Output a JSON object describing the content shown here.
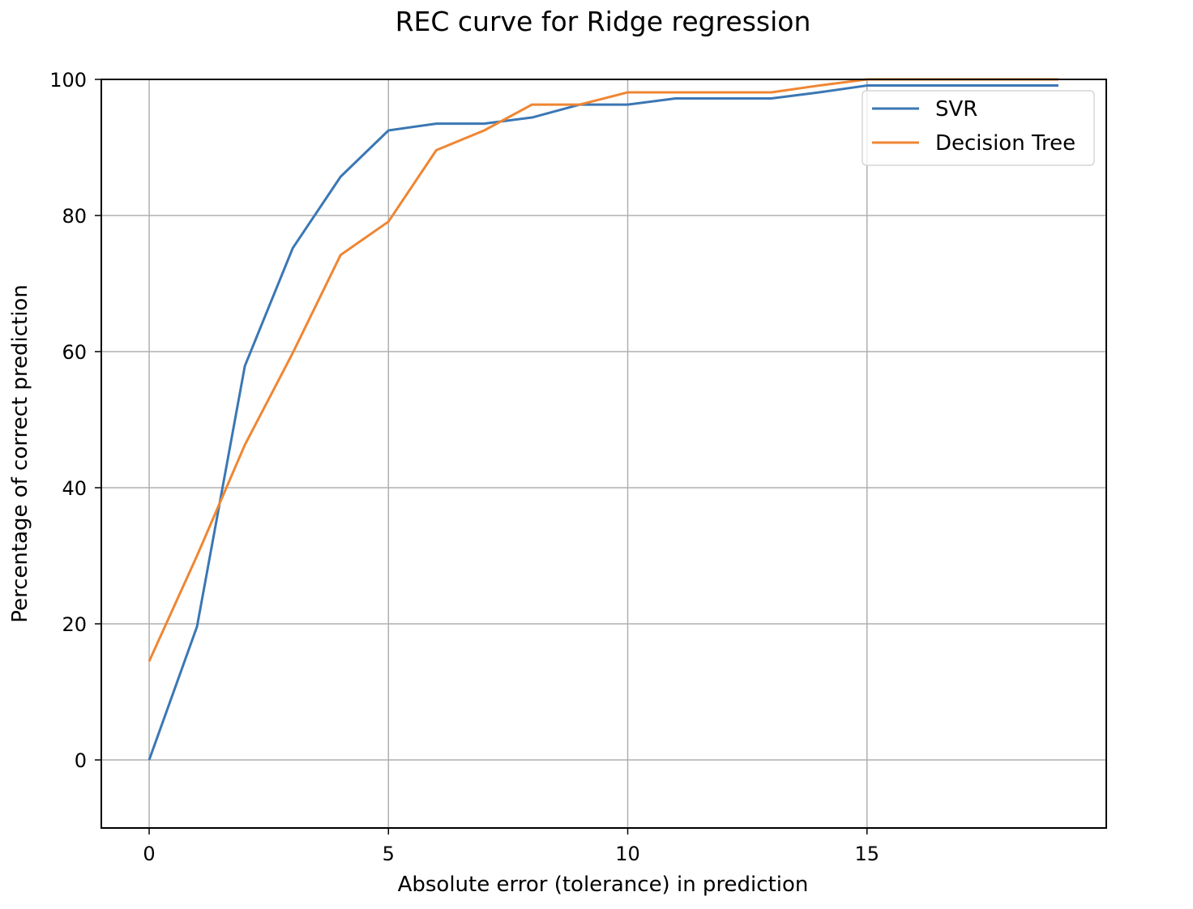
{
  "chart_data": {
    "type": "line",
    "title": "REC curve for Ridge regression",
    "xlabel": "Absolute error (tolerance) in prediction",
    "ylabel": "Percentage of correct prediction",
    "xlim": [
      -1,
      20
    ],
    "ylim": [
      -10,
      100
    ],
    "xticks": [
      0,
      5,
      10,
      15
    ],
    "yticks": [
      0,
      20,
      40,
      60,
      80,
      100
    ],
    "grid": true,
    "legend_position": "top-right",
    "x": [
      0,
      1,
      2,
      3,
      4,
      5,
      6,
      7,
      8,
      9,
      10,
      11,
      12,
      13,
      14,
      15,
      16,
      17,
      18,
      19
    ],
    "series": [
      {
        "name": "SVR",
        "color": "#3b77b4",
        "values": [
          0,
          19.6,
          57.9,
          75.2,
          85.7,
          92.5,
          93.5,
          93.5,
          94.4,
          96.3,
          96.3,
          97.2,
          97.2,
          97.2,
          98.1,
          99.1,
          99.1,
          99.1,
          99.1,
          99.1
        ]
      },
      {
        "name": "Decision Tree",
        "color": "#ef8633",
        "values": [
          14.5,
          30.0,
          46.3,
          59.8,
          74.2,
          79.1,
          89.6,
          92.5,
          96.3,
          96.3,
          98.1,
          98.1,
          98.1,
          98.1,
          99.1,
          100,
          100,
          100,
          100,
          100
        ]
      }
    ]
  }
}
